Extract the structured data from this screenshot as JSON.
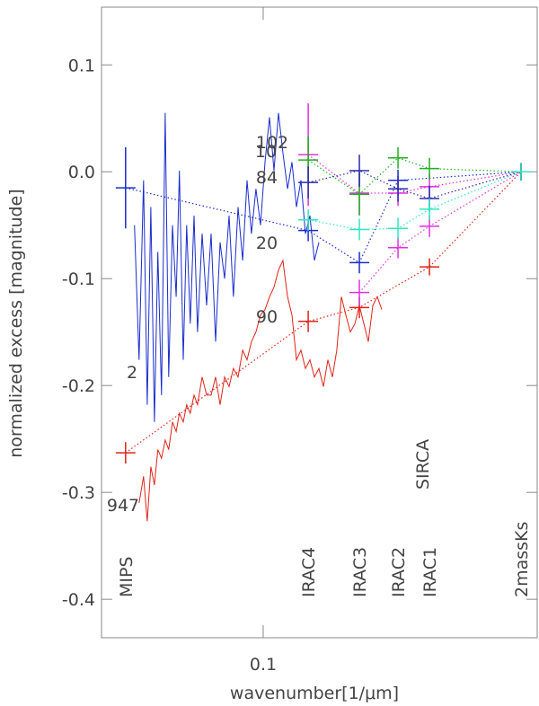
{
  "chart_data": {
    "type": "line",
    "xlabel": "wavenumber[1/μm]",
    "ylabel": "normalized excess [magnitude]",
    "xscale": "log",
    "xlim": [
      0.0373,
      0.532
    ],
    "ylim": [
      -0.436,
      0.154
    ],
    "xticks": [
      0.1
    ],
    "yticks": [
      0.1,
      {
        "value": 0,
        "label": "0.0"
      },
      -0.1,
      -0.2,
      -0.3,
      -0.4
    ],
    "x": [
      0.0456,
      0.0469,
      0.0482,
      0.0493,
      0.0504,
      0.0515,
      0.0526,
      0.0538,
      0.055,
      0.0562,
      0.0575,
      0.0588,
      0.06,
      0.0614,
      0.0627,
      0.0641,
      0.0656,
      0.067,
      0.0689,
      0.0708,
      0.0728,
      0.0748,
      0.0769,
      0.079,
      0.0812,
      0.0834,
      0.0858,
      0.0882,
      0.0906,
      0.0931,
      0.0957,
      0.0984,
      0.1011,
      0.1039,
      0.1068,
      0.1098,
      0.1128,
      0.116,
      0.1192,
      0.1225,
      0.1259,
      0.1294,
      0.133,
      0.1367,
      0.1405,
      0.1444,
      0.1484,
      0.1525,
      0.1567,
      0.1611,
      0.1656,
      0.1702,
      0.175,
      0.1798,
      0.1848,
      0.1899,
      0.1952,
      0.2006,
      0.2062
    ],
    "series": [
      {
        "color": "#1a2ccc",
        "values": [
          -0.05,
          -0.176,
          -0.008,
          -0.218,
          -0.033,
          -0.234,
          -0.075,
          -0.209,
          0.055,
          -0.192,
          -0.05,
          -0.117,
          0.001,
          -0.176,
          -0.05,
          -0.142,
          -0.041,
          -0.15,
          -0.058,
          -0.125,
          -0.058,
          -0.159,
          -0.066,
          -0.1,
          -0.041,
          -0.117,
          -0.033,
          -0.083,
          -0.008,
          -0.058,
          -0.016,
          -0.05,
          0.009,
          0.051,
          0.001,
          0.055,
          0.018,
          -0.016,
          0.009,
          -0.033,
          -0.008,
          -0.058,
          -0.041,
          -0.083,
          -0.066,
          null,
          null,
          null,
          null,
          null,
          null,
          null,
          null,
          null,
          null,
          null,
          null,
          null,
          null
        ]
      },
      {
        "color": "#e02418",
        "values": [
          null,
          -0.31,
          -0.285,
          -0.327,
          -0.276,
          -0.293,
          -0.26,
          -0.268,
          -0.251,
          -0.26,
          -0.234,
          -0.243,
          -0.226,
          -0.234,
          -0.218,
          -0.226,
          -0.209,
          -0.218,
          -0.192,
          -0.209,
          -0.209,
          -0.192,
          -0.218,
          -0.192,
          -0.201,
          -0.184,
          -0.192,
          -0.167,
          -0.176,
          -0.159,
          -0.15,
          -0.134,
          -0.129,
          -0.117,
          -0.108,
          -0.092,
          -0.083,
          -0.117,
          -0.134,
          -0.176,
          -0.167,
          -0.184,
          -0.176,
          -0.192,
          -0.184,
          -0.201,
          -0.176,
          -0.192,
          -0.167,
          -0.117,
          -0.134,
          -0.15,
          -0.142,
          -0.125,
          -0.142,
          -0.159,
          -0.125,
          -0.117,
          -0.129
        ]
      }
    ],
    "photometry": [
      {
        "name": "2",
        "color": "#1a2ccc",
        "x": [
          0.0432,
          0.1316,
          0.1798,
          0.2276,
          0.482
        ],
        "values": [
          -0.015,
          -0.055,
          -0.085,
          -0.008,
          0
        ],
        "errors": [
          0.038,
          0.01,
          0.01,
          0.01,
          0.008
        ]
      },
      {
        "name": "947",
        "color": "#e02418",
        "x": [
          0.0432,
          0.1316,
          0.1798,
          0.2757,
          0.482
        ],
        "values": [
          -0.263,
          -0.14,
          -0.127,
          -0.089,
          0
        ],
        "errors": [
          0.01,
          0.01,
          0.01,
          0.008,
          0.008
        ]
      },
      {
        "name": "90",
        "color": "#e030e0",
        "x": [
          0.1798,
          0.2276,
          0.2757,
          0.482
        ],
        "values": [
          -0.113,
          -0.071,
          -0.051,
          0
        ],
        "errors": [
          0.012,
          0.01,
          0.01,
          0.008
        ]
      },
      {
        "name": "102",
        "color": "#e030e0",
        "x": [
          0.1316,
          0.1798,
          0.2276,
          0.2757,
          0.482
        ],
        "values": [
          0.016,
          -0.02,
          -0.02,
          -0.014,
          0
        ],
        "errors": [
          0.048,
          0.02,
          0.012,
          0.012,
          0.008
        ]
      },
      {
        "name": "10",
        "color": "#20b020",
        "x": [
          0.1316,
          0.1798,
          0.2276,
          0.2757,
          0.482
        ],
        "values": [
          0.011,
          -0.021,
          0.013,
          0.003,
          0
        ],
        "errors": [
          0.022,
          0.02,
          0.01,
          0.01,
          0.008
        ]
      },
      {
        "name": "84",
        "color": "#2a2ab0",
        "x": [
          0.1316,
          0.1798,
          0.2276,
          0.2757,
          0.482
        ],
        "values": [
          -0.01,
          0.001,
          -0.016,
          -0.025,
          0
        ],
        "errors": [
          0.015,
          0.015,
          0.012,
          0.012,
          0.008
        ]
      },
      {
        "name": "20",
        "color": "#30e8c0",
        "x": [
          0.1316,
          0.1798,
          0.2276,
          0.2757,
          0.482
        ],
        "values": [
          -0.045,
          -0.054,
          -0.053,
          -0.035,
          0
        ],
        "errors": [
          0.01,
          0.01,
          0.01,
          0.01,
          0.008
        ]
      }
    ],
    "bands": [
      {
        "name": "MIPS",
        "x": 0.0432
      },
      {
        "name": "IRAC4",
        "x": 0.1316
      },
      {
        "name": "IRAC3",
        "x": 0.1798
      },
      {
        "name": "IRAC2",
        "x": 0.2276
      },
      {
        "name": "IRAC1",
        "x": 0.2757
      },
      {
        "name": "2massKs",
        "x": 0.482
      },
      {
        "name": "SIRCA",
        "x": 0.2636
      }
    ],
    "band_color": "#e030e0"
  }
}
